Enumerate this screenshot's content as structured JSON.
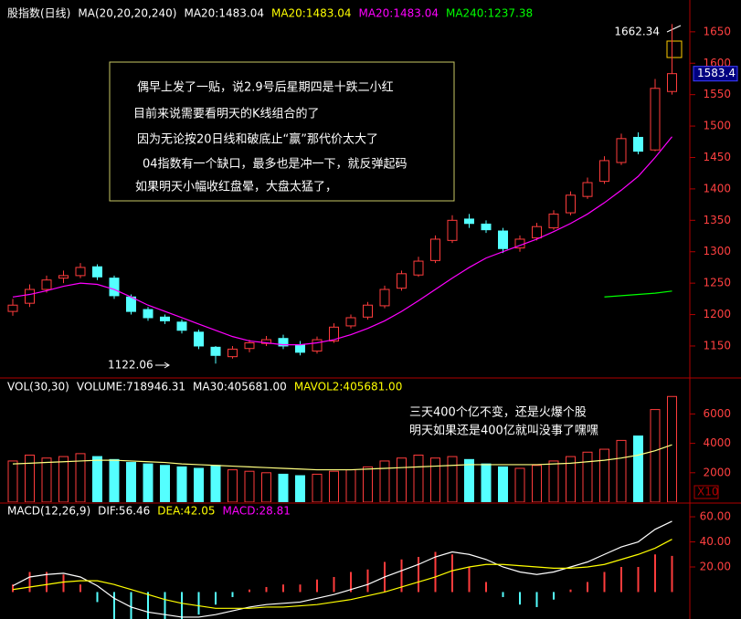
{
  "chart_data": [
    {
      "type": "candlestick",
      "title": "股指数(日线)",
      "subtitle": "MA(20,20,20,240)",
      "legend": [
        {
          "text": "MA20:1483.04",
          "color": "#ffffff"
        },
        {
          "text": "MA20:1483.04",
          "color": "#ffff00"
        },
        {
          "text": "MA20:1483.04",
          "color": "#ff00ff"
        },
        {
          "text": "MA240:1237.38",
          "color": "#00ff00"
        }
      ],
      "open": [
        1205,
        1218,
        1240,
        1258,
        1262,
        1276,
        1258,
        1228,
        1208,
        1196,
        1188,
        1172,
        1148,
        1133,
        1146,
        1154,
        1162,
        1152,
        1142,
        1158,
        1182,
        1196,
        1214,
        1242,
        1263,
        1286,
        1318,
        1352,
        1344,
        1333,
        1306,
        1322,
        1338,
        1362,
        1388,
        1412,
        1442,
        1482,
        1462,
        1555
      ],
      "high": [
        1225,
        1248,
        1262,
        1270,
        1282,
        1280,
        1262,
        1232,
        1212,
        1200,
        1192,
        1176,
        1150,
        1150,
        1160,
        1166,
        1168,
        1158,
        1165,
        1186,
        1200,
        1220,
        1246,
        1270,
        1292,
        1326,
        1358,
        1360,
        1350,
        1338,
        1326,
        1346,
        1366,
        1396,
        1418,
        1452,
        1488,
        1490,
        1575,
        1662.34
      ],
      "low": [
        1198,
        1212,
        1235,
        1250,
        1258,
        1255,
        1225,
        1200,
        1190,
        1185,
        1170,
        1145,
        1122.06,
        1130,
        1140,
        1150,
        1145,
        1135,
        1138,
        1155,
        1178,
        1192,
        1210,
        1238,
        1260,
        1282,
        1314,
        1338,
        1330,
        1298,
        1300,
        1318,
        1335,
        1358,
        1384,
        1408,
        1438,
        1455,
        1460,
        1550
      ],
      "close": [
        1215,
        1240,
        1255,
        1262,
        1275,
        1260,
        1230,
        1205,
        1195,
        1190,
        1175,
        1150,
        1135,
        1145,
        1155,
        1160,
        1150,
        1140,
        1160,
        1180,
        1195,
        1215,
        1240,
        1265,
        1285,
        1320,
        1350,
        1345,
        1335,
        1305,
        1320,
        1340,
        1360,
        1390,
        1410,
        1445,
        1480,
        1460,
        1560,
        1583.4
      ],
      "up_color": "#ff3c3c",
      "down_color": "#54ffff",
      "series": [
        {
          "color": "#ff00ff",
          "values": [
            1228,
            1232,
            1238,
            1245,
            1250,
            1248,
            1240,
            1228,
            1215,
            1205,
            1195,
            1185,
            1175,
            1165,
            1158,
            1155,
            1152,
            1152,
            1155,
            1160,
            1168,
            1178,
            1190,
            1205,
            1222,
            1240,
            1258,
            1275,
            1290,
            1300,
            1310,
            1320,
            1332,
            1345,
            1360,
            1378,
            1398,
            1420,
            1450,
            1483.04
          ]
        },
        {
          "color": "#00ff00",
          "values": [
            null,
            null,
            null,
            null,
            null,
            null,
            null,
            null,
            null,
            null,
            null,
            null,
            null,
            null,
            null,
            null,
            null,
            null,
            null,
            null,
            null,
            null,
            null,
            null,
            null,
            null,
            null,
            null,
            null,
            null,
            null,
            null,
            null,
            null,
            null,
            1228,
            1230,
            1232,
            1234,
            1237.38
          ]
        }
      ],
      "ylim": [
        1102,
        1689
      ],
      "yticks": [
        1150,
        1200,
        1250,
        1300,
        1350,
        1400,
        1450,
        1500,
        1550,
        1600,
        1650
      ],
      "annotation": [
        "偶早上发了一贴，说2.9号后星期四是十跌二小红",
        "目前来说需要看明天的K线组合的了",
        "因为无论按20日线和破底止“赢”那代价太大了",
        "04指数有一个缺口，最多也是冲一下，就反弹起码",
        "如果明天小幅收红盘晕，大盘太猛了，"
      ]
    },
    {
      "type": "bar",
      "title": "VOL(30,30)",
      "legend": [
        {
          "text": "VOLUME:718946.31",
          "color": "#ffffff"
        },
        {
          "text": "MA30:405681.00",
          "color": "#ffffff"
        },
        {
          "text": "MAVOL2:405681.00",
          "color": "#ffff00"
        }
      ],
      "values": [
        2800,
        3200,
        3000,
        3100,
        3300,
        3100,
        2900,
        2700,
        2600,
        2500,
        2400,
        2300,
        2500,
        2200,
        2100,
        2000,
        1900,
        1800,
        1900,
        2100,
        2200,
        2400,
        2800,
        3000,
        3200,
        3000,
        3100,
        2900,
        2600,
        2400,
        2300,
        2500,
        2800,
        3100,
        3400,
        3600,
        4200,
        4500,
        6300,
        7189.46
      ],
      "series": [
        {
          "color": "#ffff80",
          "values": [
            2600,
            2650,
            2700,
            2750,
            2800,
            2850,
            2850,
            2800,
            2750,
            2700,
            2600,
            2550,
            2500,
            2450,
            2400,
            2350,
            2300,
            2250,
            2200,
            2200,
            2200,
            2250,
            2300,
            2350,
            2400,
            2450,
            2500,
            2550,
            2550,
            2550,
            2550,
            2550,
            2600,
            2650,
            2750,
            2850,
            3000,
            3200,
            3500,
            3900
          ]
        }
      ],
      "ylim": [
        0,
        8200
      ],
      "yticks": [
        2000,
        4000,
        6000
      ],
      "unit": "X10",
      "annotation": [
        "三天400个亿不变，还是火爆个股",
        "明天如果还是400亿就叫没事了嘿嘿"
      ]
    },
    {
      "type": "macd",
      "title": "MACD(12,26,9)",
      "legend": [
        {
          "text": "DIF:56.46",
          "color": "#ffffff"
        },
        {
          "text": "DEA:42.05",
          "color": "#ffff00"
        },
        {
          "text": "MACD:28.81",
          "color": "#ff00ff"
        }
      ],
      "series": [
        {
          "color": "#ffffff",
          "values": [
            5,
            12,
            14,
            15,
            12,
            5,
            -5,
            -12,
            -16,
            -18,
            -20,
            -20,
            -18,
            -15,
            -12,
            -10,
            -9,
            -8,
            -5,
            -2,
            2,
            6,
            12,
            17,
            22,
            28,
            32,
            30,
            26,
            20,
            16,
            14,
            16,
            20,
            24,
            30,
            36,
            40,
            50,
            56.46
          ]
        },
        {
          "color": "#ffff00",
          "values": [
            2,
            4,
            6,
            8,
            9,
            9,
            6,
            2,
            -2,
            -6,
            -9,
            -11,
            -13,
            -13,
            -13,
            -12,
            -12,
            -11,
            -10,
            -8,
            -6,
            -3,
            0,
            4,
            8,
            12,
            17,
            20,
            22,
            22,
            21,
            20,
            19,
            19,
            20,
            22,
            26,
            30,
            35,
            42.05
          ]
        }
      ],
      "values": [
        6,
        16,
        16,
        14,
        6,
        -8,
        -22,
        -28,
        -28,
        -24,
        -22,
        -18,
        -10,
        -4,
        2,
        4,
        6,
        6,
        10,
        12,
        16,
        18,
        24,
        26,
        28,
        32,
        30,
        20,
        8,
        -4,
        -10,
        -12,
        -6,
        2,
        8,
        16,
        20,
        20,
        30,
        28.81
      ],
      "ylim": [
        -21.5,
        69.5
      ],
      "yticks": [
        {
          "value": 20,
          "label": "20.00"
        },
        {
          "value": 40,
          "label": "40.00"
        },
        {
          "value": 60,
          "label": "60.00"
        }
      ]
    }
  ]
}
